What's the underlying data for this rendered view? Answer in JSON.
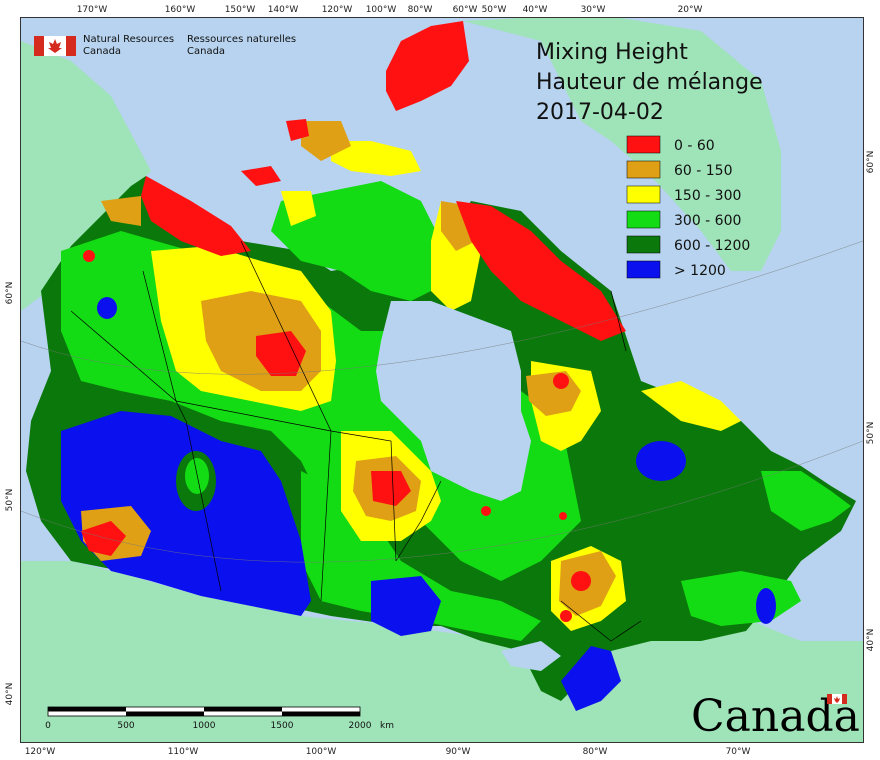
{
  "title": {
    "line1": "Mixing Height",
    "line2": "Hauteur de mélange",
    "date": "2017-04-02"
  },
  "agency": {
    "en_line1": "Natural Resources",
    "en_line2": "Canada",
    "fr_line1": "Ressources naturelles",
    "fr_line2": "Canada"
  },
  "wordmark": "Canada",
  "legend": [
    {
      "label": "0 - 60",
      "color": "#ff1111"
    },
    {
      "label": "60 - 150",
      "color": "#dfa015"
    },
    {
      "label": "150 - 300",
      "color": "#ffff00"
    },
    {
      "label": "300 - 600",
      "color": "#14dc14"
    },
    {
      "label": "600 - 1200",
      "color": "#0a780a"
    },
    {
      "label": "> 1200",
      "color": "#0b10ef"
    }
  ],
  "top_ticks": [
    "170°W",
    "160°W",
    "150°W",
    "140°W",
    "120°W",
    "100°W",
    "80°W",
    "60°W",
    "50°W",
    "40°W",
    "30°W",
    "20°W"
  ],
  "bottom_ticks": [
    "120°W",
    "110°W",
    "100°W",
    "90°W",
    "80°W",
    "70°W"
  ],
  "left_ticks": [
    "60°N",
    "50°N",
    "40°N"
  ],
  "right_ticks": [
    "60°N",
    "50°N",
    "40°N"
  ],
  "scale": {
    "labels": [
      "0",
      "500",
      "1000",
      "1500",
      "2000"
    ],
    "unit": "km"
  },
  "colors": {
    "water": "#b7d3ef",
    "land_outside": "#9fe3b8",
    "red": "#ff1111",
    "orange": "#dfa015",
    "yellow": "#ffff00",
    "light_green": "#14dc14",
    "dark_green": "#0a780a",
    "blue": "#0b10ef"
  }
}
